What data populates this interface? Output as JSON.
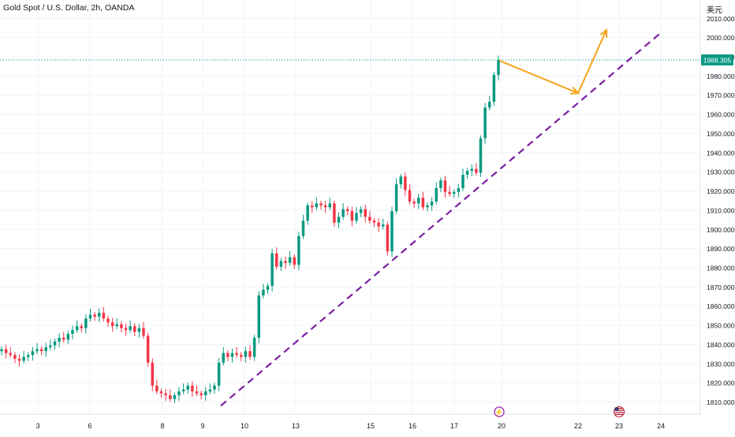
{
  "header": {
    "title": "Gold Spot / U.S. Dollar, 2h, OANDA",
    "currency_label": "美元"
  },
  "chart_data": {
    "type": "candlestick",
    "title": "Gold Spot / U.S. Dollar, 2h, OANDA",
    "ylim": [
      1805,
      2018
    ],
    "y_ticks": [
      "1810.000",
      "1820.000",
      "1830.000",
      "1840.000",
      "1850.000",
      "1860.000",
      "1870.000",
      "1880.000",
      "1890.000",
      "1900.000",
      "1910.000",
      "1920.000",
      "1930.000",
      "1940.000",
      "1950.000",
      "1960.000",
      "1970.000",
      "1980.000",
      "1990.000",
      "2000.000",
      "2010.000"
    ],
    "x_ticks": [
      "3",
      "6",
      "8",
      "9",
      "10",
      "13",
      "15",
      "16",
      "17",
      "20",
      "22",
      "23",
      "24"
    ],
    "current_price": "1988.305",
    "colors": {
      "up": "#089981",
      "down": "#f23645",
      "trendline": "#7b1fa2",
      "projection": "#f7a21b",
      "price_line": "#26a69a",
      "price_label_bg": "#089981"
    },
    "candles_start": 1836.5,
    "candle_closes": [
      1837.5,
      1835.5,
      1834.5,
      1832.5,
      1831.5,
      1833.5,
      1834.5,
      1836.5,
      1837.5,
      1836.5,
      1838.5,
      1839.5,
      1841.5,
      1843.5,
      1842.5,
      1845.5,
      1847.5,
      1849.5,
      1848.5,
      1853.5,
      1855.5,
      1854.5,
      1856.5,
      1853.5,
      1851.5,
      1849.5,
      1850.5,
      1848.5,
      1847.5,
      1849.5,
      1846.5,
      1848.5,
      1844.5,
      1830.5,
      1818.5,
      1815.5,
      1814.5,
      1813.5,
      1811.5,
      1813.5,
      1815.5,
      1816.5,
      1818.5,
      1815.5,
      1814.5,
      1813.5,
      1815.5,
      1816.5,
      1818.5,
      1830.5,
      1835.5,
      1833.5,
      1835.5,
      1834.5,
      1833.5,
      1836.5,
      1833.5,
      1843.5,
      1865.5,
      1868.5,
      1870.5,
      1887.5,
      1880.5,
      1883.5,
      1882.5,
      1885.5,
      1881.5,
      1896.5,
      1904.5,
      1912.5,
      1911.5,
      1913.5,
      1912.5,
      1911.5,
      1913.5,
      1903.5,
      1906.5,
      1910.5,
      1909.5,
      1904.5,
      1908.5,
      1910.5,
      1906.5,
      1904.5,
      1903.5,
      1901.5,
      1902.5,
      1888.5,
      1909.5,
      1923.5,
      1927.5,
      1920.5,
      1914.5,
      1913.5,
      1916.5,
      1911.5,
      1912.5,
      1914.5,
      1921.5,
      1925.5,
      1919.5,
      1918.5,
      1919.5,
      1921.5,
      1928.5,
      1930.5,
      1931.5,
      1929.5,
      1947.5,
      1963.5,
      1966.5,
      1980.5,
      1988.3
    ],
    "trendline": {
      "from": {
        "x_label": "9.5",
        "y": 1808
      },
      "to": {
        "x_label": "24",
        "y": 2002.5
      }
    },
    "projection": [
      {
        "y": 1988
      },
      {
        "y": 1971
      },
      {
        "y": 2004
      }
    ]
  }
}
